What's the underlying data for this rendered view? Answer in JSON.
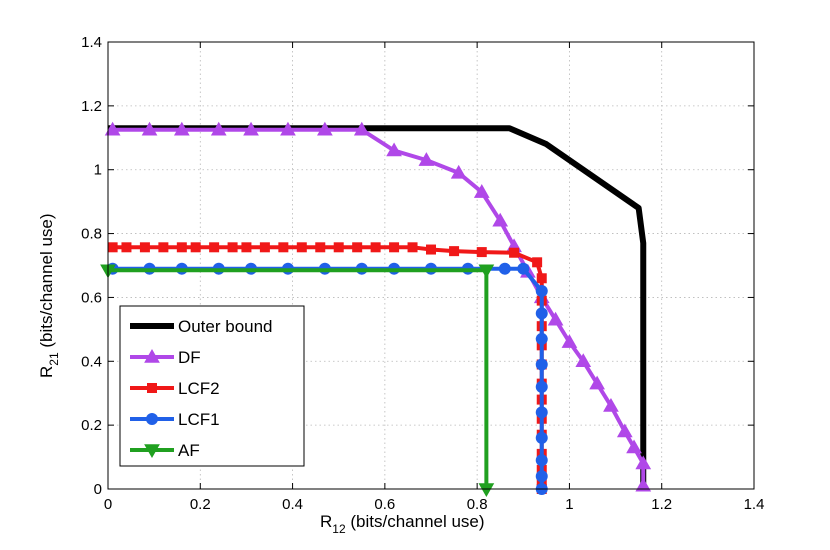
{
  "chart_data": {
    "type": "line",
    "title": "",
    "xlabel": {
      "main": "R",
      "sub": "12",
      "rest": " (bits/channel use)"
    },
    "ylabel": {
      "main": "R",
      "sub": "21",
      "rest": " (bits/channel use)"
    },
    "xlim": [
      0,
      1.4
    ],
    "ylim": [
      0,
      1.4
    ],
    "xticks": [
      0,
      0.2,
      0.4,
      0.6,
      0.8,
      1,
      1.2,
      1.4
    ],
    "xtick_labels": [
      "0",
      "0.2",
      "0.4",
      "0.6",
      "0.8",
      "1",
      "1.2",
      "1.4"
    ],
    "yticks": [
      0,
      0.2,
      0.4,
      0.6,
      0.8,
      1,
      1.2,
      1.4
    ],
    "ytick_labels": [
      "0",
      "0.2",
      "0.4",
      "0.6",
      "0.8",
      "1",
      "1.2",
      "1.4"
    ],
    "grid": true,
    "legend_position": "bottom-left",
    "series": [
      {
        "name": "Outer bound",
        "color": "#000000",
        "marker": "none",
        "x": [
          0,
          0.87,
          0.95,
          1.15,
          1.16,
          1.16
        ],
        "y": [
          1.13,
          1.13,
          1.08,
          0.88,
          0.77,
          0
        ]
      },
      {
        "name": "DF",
        "color": "#b048e8",
        "marker": "triangle-up",
        "x": [
          0.01,
          0.09,
          0.16,
          0.24,
          0.31,
          0.39,
          0.47,
          0.55,
          0.62,
          0.69,
          0.76,
          0.81,
          0.85,
          0.88,
          0.91,
          0.94,
          0.97,
          1.0,
          1.03,
          1.06,
          1.09,
          1.12,
          1.14,
          1.16,
          1.16
        ],
        "y": [
          1.125,
          1.125,
          1.125,
          1.125,
          1.125,
          1.125,
          1.125,
          1.125,
          1.06,
          1.03,
          0.99,
          0.93,
          0.84,
          0.76,
          0.68,
          0.6,
          0.53,
          0.46,
          0.4,
          0.33,
          0.26,
          0.18,
          0.13,
          0.08,
          0.01
        ]
      },
      {
        "name": "LCF2",
        "color": "#f01818",
        "marker": "square",
        "x": [
          0.01,
          0.04,
          0.08,
          0.12,
          0.16,
          0.19,
          0.23,
          0.27,
          0.3,
          0.34,
          0.38,
          0.42,
          0.46,
          0.5,
          0.54,
          0.58,
          0.62,
          0.66,
          0.7,
          0.75,
          0.81,
          0.88,
          0.93,
          0.94,
          0.94,
          0.94,
          0.94,
          0.94,
          0.94,
          0.94,
          0.94,
          0.94,
          0.94,
          0.94,
          0.94,
          0.94
        ],
        "y": [
          0.757,
          0.757,
          0.757,
          0.757,
          0.757,
          0.757,
          0.757,
          0.757,
          0.757,
          0.757,
          0.757,
          0.757,
          0.757,
          0.757,
          0.757,
          0.757,
          0.757,
          0.757,
          0.75,
          0.745,
          0.742,
          0.74,
          0.71,
          0.66,
          0.59,
          0.51,
          0.45,
          0.39,
          0.33,
          0.28,
          0.22,
          0.17,
          0.11,
          0.06,
          0.02,
          0
        ]
      },
      {
        "name": "LCF1",
        "color": "#2060e8",
        "marker": "circle",
        "x": [
          0.01,
          0.09,
          0.16,
          0.24,
          0.31,
          0.39,
          0.47,
          0.55,
          0.62,
          0.7,
          0.78,
          0.86,
          0.9,
          0.94,
          0.94,
          0.94,
          0.94,
          0.94,
          0.94,
          0.94,
          0.94,
          0.94,
          0.94
        ],
        "y": [
          0.69,
          0.69,
          0.69,
          0.69,
          0.69,
          0.69,
          0.69,
          0.69,
          0.69,
          0.69,
          0.69,
          0.69,
          0.69,
          0.62,
          0.55,
          0.47,
          0.39,
          0.32,
          0.24,
          0.16,
          0.09,
          0.04,
          0
        ]
      },
      {
        "name": "AF",
        "color": "#20a020",
        "marker": "triangle-down",
        "x": [
          0,
          0.82,
          0.82
        ],
        "y": [
          0.685,
          0.685,
          0
        ]
      }
    ]
  }
}
